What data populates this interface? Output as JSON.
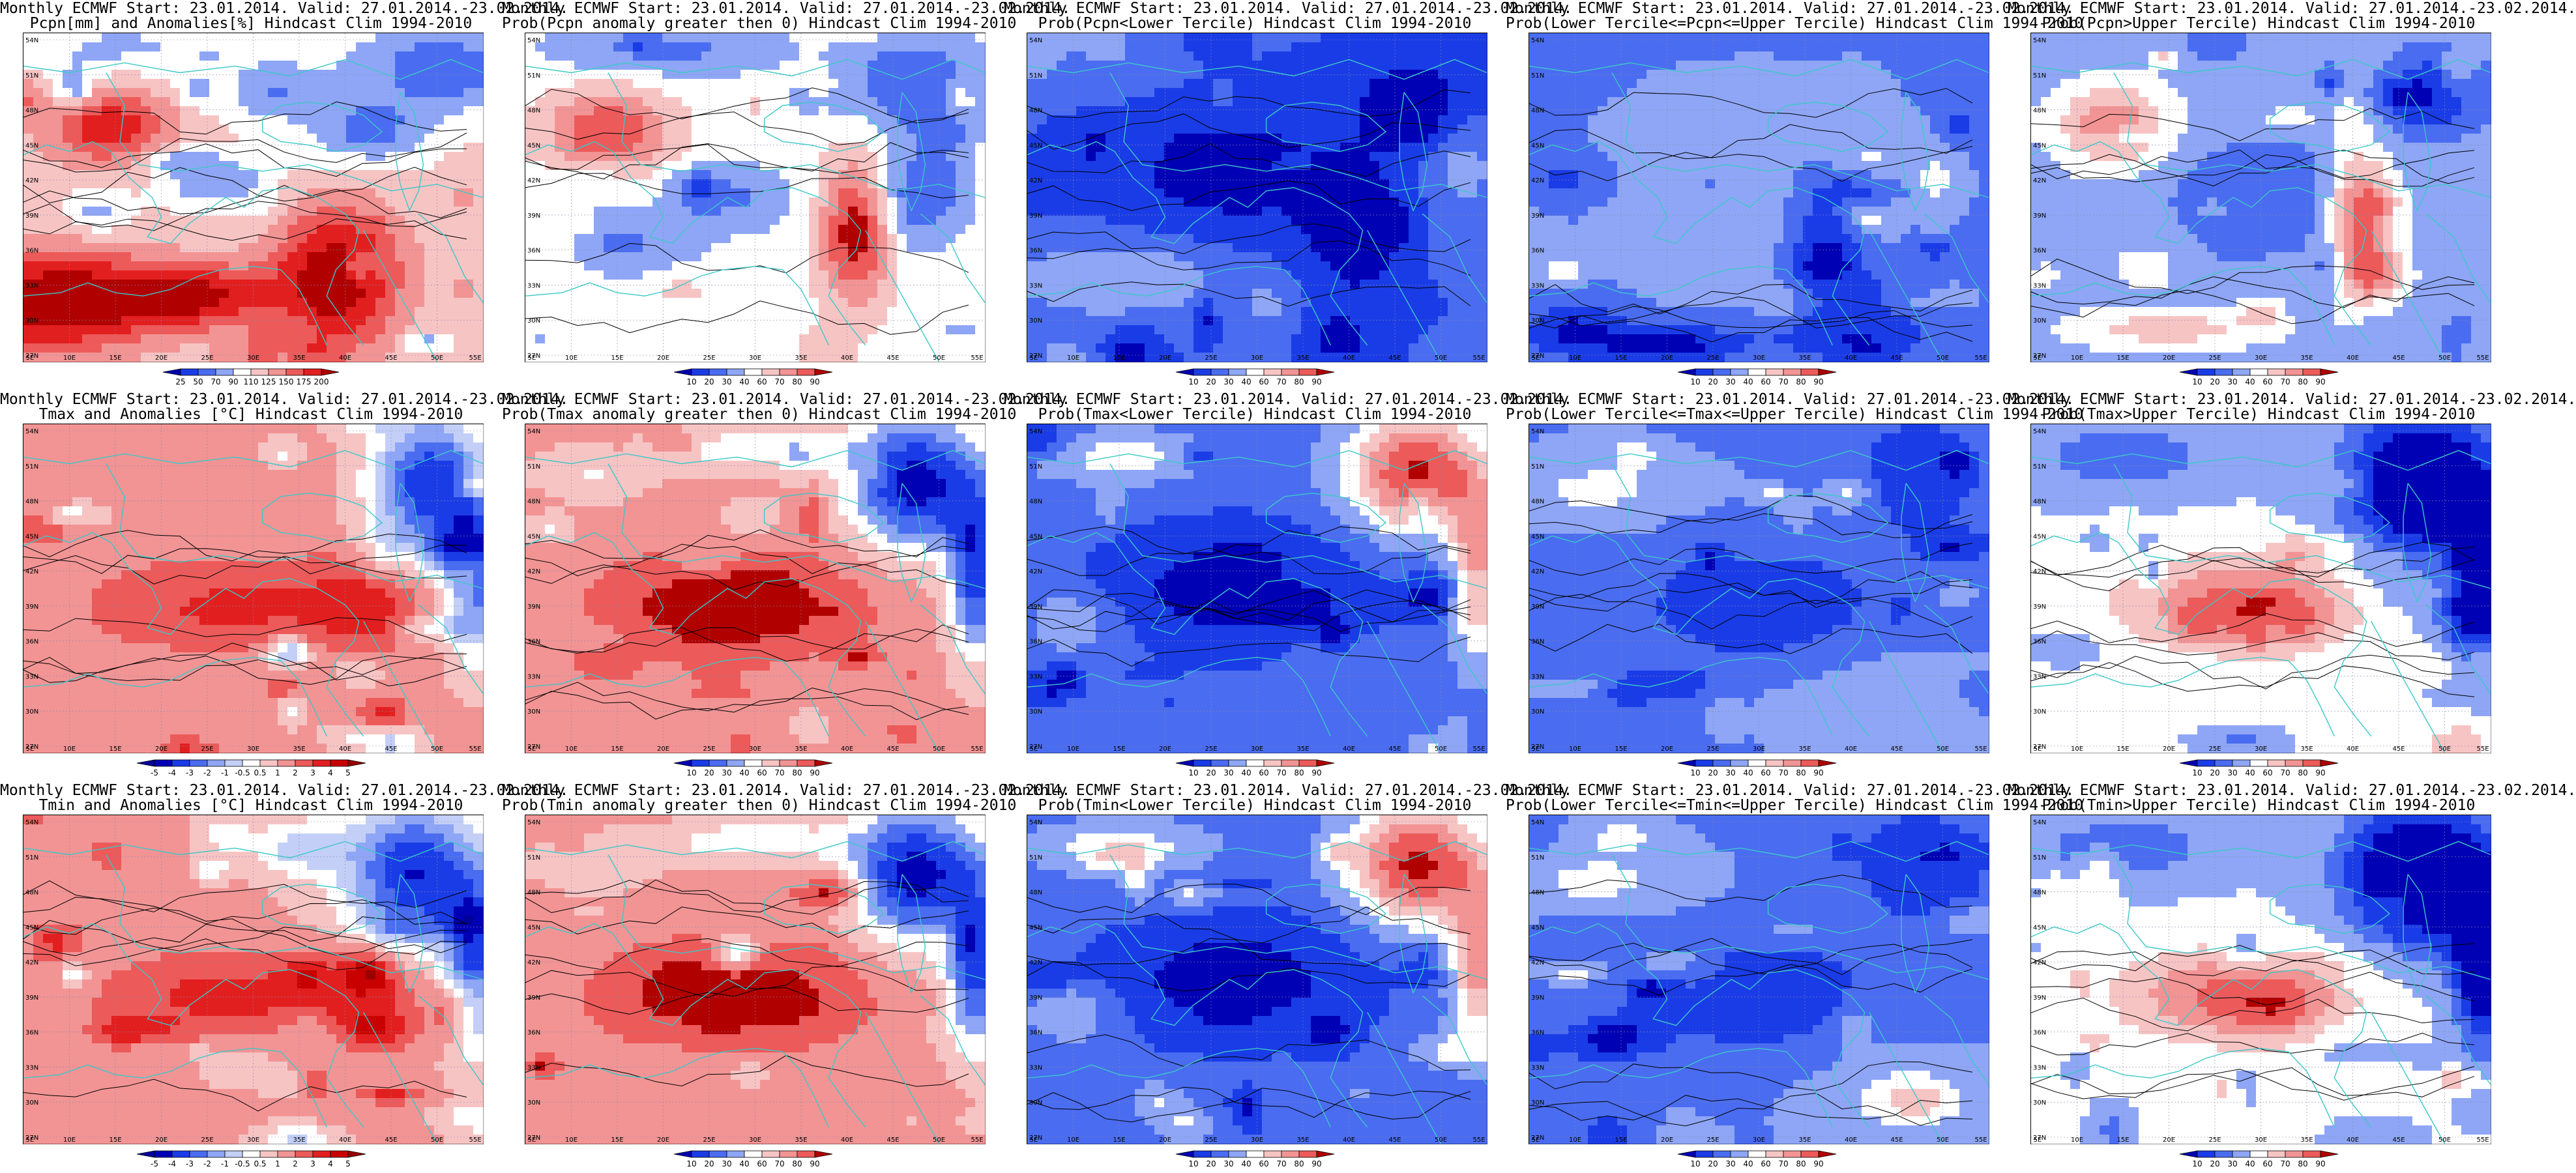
{
  "figure": {
    "lon_labels": [
      "5E",
      "10E",
      "15E",
      "20E",
      "25E",
      "30E",
      "35E",
      "40E",
      "45E",
      "50E",
      "55E"
    ],
    "lat_labels": [
      "54N",
      "51N",
      "48N",
      "45N",
      "42N",
      "39N",
      "36N",
      "33N",
      "30N",
      "27N"
    ],
    "palette": {
      "neg": [
        "#0000b4",
        "#1a3ce6",
        "#4a6cf0",
        "#8ea6f5",
        "#c3cff7"
      ],
      "mid": "#ffffff",
      "pos": [
        "#f7c4c4",
        "#f29494",
        "#ec5a5a",
        "#e21f1f",
        "#b00000"
      ],
      "coast": "#3cc8c8",
      "contour": "#000000"
    }
  },
  "panels": [
    {
      "title1": "Monthly ECMWF Start: 23.01.2014. Valid: 27.01.2014.-23.02.2014.",
      "title2": "Pcpn[mm] and Anomalies[%] Hindcast Clim 1994-2010",
      "scale": "anom_pcpn",
      "pattern": "pcpn_anom"
    },
    {
      "title1": "Monthly ECMWF Start: 23.01.2014. Valid: 27.01.2014.-23.02.2014.",
      "title2": "Prob(Pcpn anomaly greater then 0) Hindcast Clim 1994-2010",
      "scale": "prob",
      "pattern": "pcpn_pos"
    },
    {
      "title1": "Monthly ECMWF Start: 23.01.2014. Valid: 27.01.2014.-23.02.2014.",
      "title2": "Prob(Pcpn<Lower Tercile) Hindcast Clim 1994-2010",
      "scale": "prob",
      "pattern": "pcpn_low"
    },
    {
      "title1": "Monthly ECMWF Start: 23.01.2014. Valid: 27.01.2014.-23.02.2014.",
      "title2": "Prob(Lower Tercile<=Pcpn<=Upper Tercile) Hindcast Clim 1994-2010",
      "scale": "prob",
      "pattern": "pcpn_mid"
    },
    {
      "title1": "Monthly ECMWF Start: 23.01.2014. Valid: 27.01.2014.-23.02.2014.",
      "title2": "Prob(Pcpn>Upper Tercile) Hindcast Clim 1994-2010",
      "scale": "prob",
      "pattern": "pcpn_up"
    },
    {
      "title1": "Monthly ECMWF Start: 23.01.2014. Valid: 27.01.2014.-23.02.2014.",
      "title2": "Tmax and Anomalies [°C] Hindcast Clim 1994-2010",
      "scale": "anom_t",
      "pattern": "t_anom"
    },
    {
      "title1": "Monthly ECMWF Start: 23.01.2014. Valid: 27.01.2014.-23.02.2014.",
      "title2": "Prob(Tmax anomaly greater then 0) Hindcast Clim 1994-2010",
      "scale": "prob",
      "pattern": "t_pos"
    },
    {
      "title1": "Monthly ECMWF Start: 23.01.2014. Valid: 27.01.2014.-23.02.2014.",
      "title2": "Prob(Tmax<Lower Tercile) Hindcast Clim 1994-2010",
      "scale": "prob",
      "pattern": "t_low"
    },
    {
      "title1": "Monthly ECMWF Start: 23.01.2014. Valid: 27.01.2014.-23.02.2014.",
      "title2": "Prob(Lower Tercile<=Tmax<=Upper Tercile) Hindcast Clim 1994-2010",
      "scale": "prob",
      "pattern": "t_mid"
    },
    {
      "title1": "Monthly ECMWF Start: 23.01.2014. Valid: 27.01.2014.-23.02.2014.",
      "title2": "Prob(Tmax>Upper Tercile) Hindcast Clim 1994-2010",
      "scale": "prob",
      "pattern": "t_up"
    },
    {
      "title1": "Monthly ECMWF Start: 23.01.2014. Valid: 27.01.2014.-23.02.2014.",
      "title2": "Tmin and Anomalies [°C] Hindcast Clim 1994-2010",
      "scale": "anom_t",
      "pattern": "tn_anom"
    },
    {
      "title1": "Monthly ECMWF Start: 23.01.2014. Valid: 27.01.2014.-23.02.2014.",
      "title2": "Prob(Tmin anomaly greater then 0) Hindcast Clim 1994-2010",
      "scale": "prob",
      "pattern": "t_pos"
    },
    {
      "title1": "Monthly ECMWF Start: 23.01.2014. Valid: 27.01.2014.-23.02.2014.",
      "title2": "Prob(Tmin<Lower Tercile) Hindcast Clim 1994-2010",
      "scale": "prob",
      "pattern": "t_low"
    },
    {
      "title1": "Monthly ECMWF Start: 23.01.2014. Valid: 27.01.2014.-23.02.2014.",
      "title2": "Prob(Lower Tercile<=Tmin<=Upper Tercile) Hindcast Clim 1994-2010",
      "scale": "prob",
      "pattern": "t_mid"
    },
    {
      "title1": "Monthly ECMWF Start: 23.01.2014. Valid: 27.01.2014.-23.02.2014.",
      "title2": "Prob(Tmin>Upper Tercile) Hindcast Clim 1994-2010",
      "scale": "prob",
      "pattern": "t_up"
    }
  ],
  "scales": {
    "anom_pcpn": {
      "ticks": [
        "25",
        "50",
        "70",
        "90",
        "110",
        "125",
        "150",
        "175",
        "200"
      ],
      "colors": [
        "#0000b4",
        "#1a3ce6",
        "#4a6cf0",
        "#8ea6f5",
        "#ffffff",
        "#f7c4c4",
        "#f29494",
        "#ec5a5a",
        "#e21f1f",
        "#b00000"
      ]
    },
    "anom_t": {
      "ticks": [
        "-5",
        "-4",
        "-3",
        "-2",
        "-1",
        "-0.5",
        "0.5",
        "1",
        "2",
        "3",
        "4",
        "5"
      ],
      "colors": [
        "#00009a",
        "#0000b4",
        "#1a3ce6",
        "#4a6cf0",
        "#8ea6f5",
        "#c3cff7",
        "#ffffff",
        "#f7c4c4",
        "#f29494",
        "#ec5a5a",
        "#e21f1f",
        "#c80000",
        "#9a0000"
      ]
    },
    "prob": {
      "ticks": [
        "10",
        "20",
        "30",
        "40",
        "60",
        "70",
        "80",
        "90"
      ],
      "colors": [
        "#0000b4",
        "#1a3ce6",
        "#4a6cf0",
        "#8ea6f5",
        "#ffffff",
        "#f7c4c4",
        "#f29494",
        "#ec5a5a",
        "#b00000"
      ]
    }
  }
}
